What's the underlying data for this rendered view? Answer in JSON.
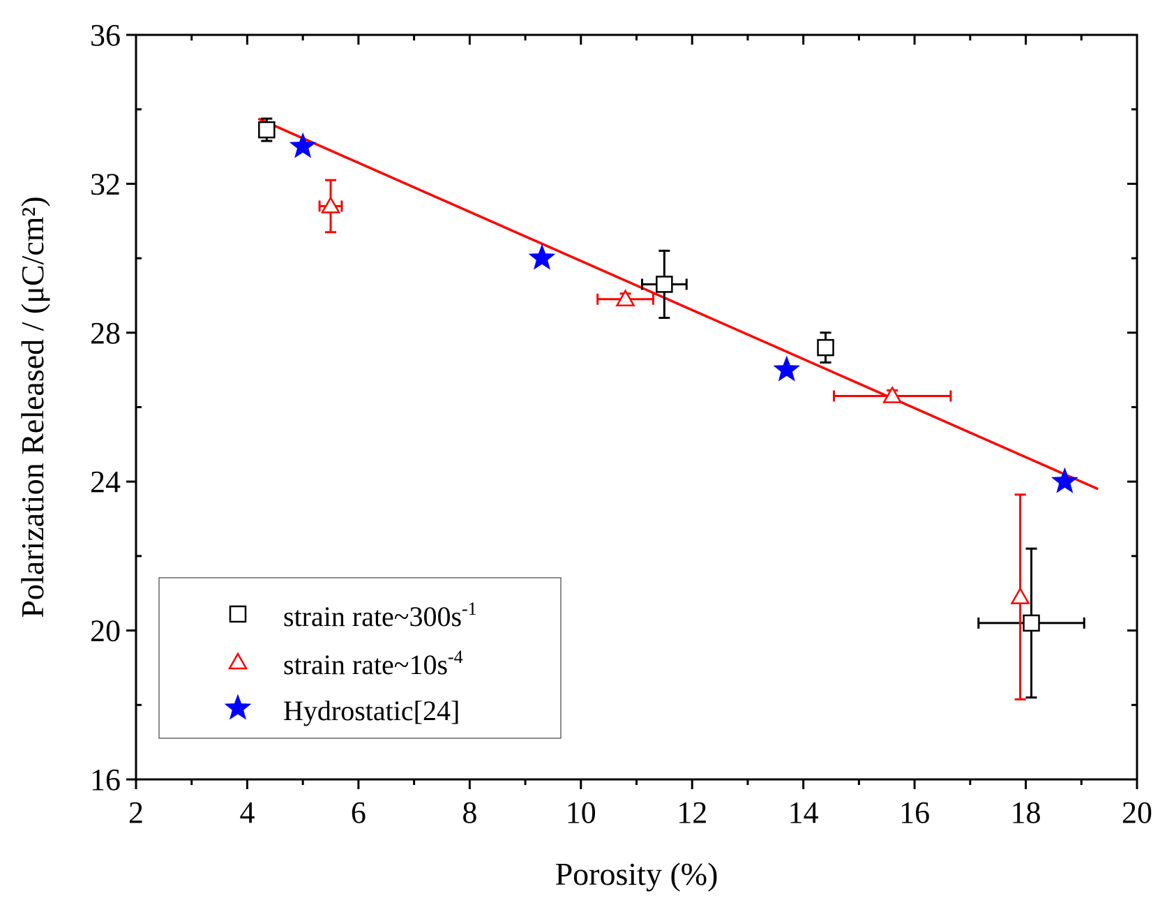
{
  "chart_data": {
    "type": "scatter",
    "xlabel": "Porosity (%)",
    "ylabel": "Polarization Released / (μC/cm²)",
    "xlim": [
      2,
      20
    ],
    "ylim": [
      16,
      36
    ],
    "x_ticks": [
      2,
      4,
      6,
      8,
      10,
      12,
      14,
      16,
      18,
      20
    ],
    "y_ticks": [
      16,
      20,
      24,
      28,
      32,
      36
    ],
    "grid": false,
    "legend_position": "bottom-left",
    "series": [
      {
        "name": "strain rate~300s-1",
        "marker": "square-open",
        "color": "#000000",
        "points": [
          {
            "x": 4.35,
            "y": 33.45,
            "x_err": 0.1,
            "y_err": 0.3
          },
          {
            "x": 11.5,
            "y": 29.3,
            "x_err": 0.4,
            "y_err": 0.9
          },
          {
            "x": 14.4,
            "y": 27.6,
            "x_err": 0.1,
            "y_err": 0.4
          },
          {
            "x": 18.1,
            "y": 20.2,
            "x_err": 0.95,
            "y_err": 2.0
          }
        ]
      },
      {
        "name": "strain rate~10s-4",
        "marker": "triangle-open",
        "color": "#ff0000",
        "points": [
          {
            "x": 5.5,
            "y": 31.4,
            "x_err": 0.2,
            "y_err": 0.7
          },
          {
            "x": 10.8,
            "y": 28.9,
            "x_err": 0.5,
            "y_err": 0.15
          },
          {
            "x": 15.6,
            "y": 26.3,
            "x_err": 1.05,
            "y_err": 0.15
          },
          {
            "x": 17.9,
            "y": 20.9,
            "x_err": 0.0,
            "y_err": 2.75
          }
        ]
      },
      {
        "name": "Hydrostatic[24]",
        "marker": "star-filled",
        "color": "#0000ff",
        "points": [
          {
            "x": 5.0,
            "y": 33.0
          },
          {
            "x": 9.3,
            "y": 30.0
          },
          {
            "x": 13.7,
            "y": 27.0
          },
          {
            "x": 18.7,
            "y": 24.0
          }
        ]
      }
    ],
    "fit_line": {
      "color": "#ff0000",
      "x": [
        4.2,
        19.3
      ],
      "y": [
        33.75,
        23.8
      ]
    },
    "legend": {
      "entries": [
        {
          "text": "strain rate~300s",
          "sup": "-1"
        },
        {
          "text": "strain rate~10s",
          "sup": "-4"
        },
        {
          "text": "Hydrostatic[24]",
          "sup": ""
        }
      ]
    }
  }
}
